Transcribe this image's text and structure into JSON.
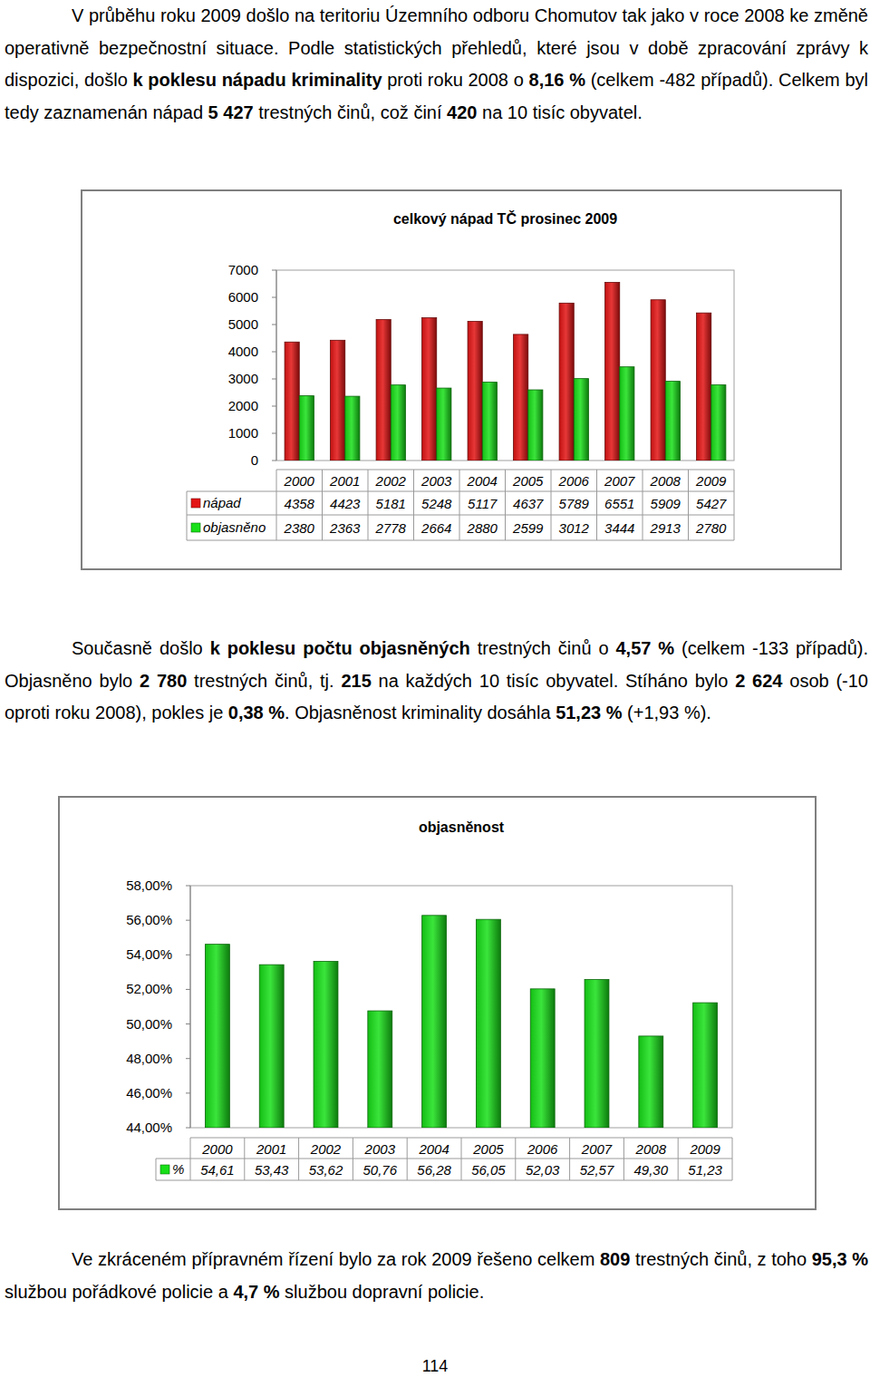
{
  "document": {
    "paragraphs": [
      {
        "runs": [
          {
            "text": "V průběhu roku 2009 došlo na teritoriu Územního odboru Chomutov tak jako v roce 2008 ke změně operativně bezpečnostní situace. Podle statistických přehledů, které jsou v době zpracování zprávy k dispozici, došlo ",
            "bold": false
          },
          {
            "text": "k poklesu nápadu kriminality",
            "bold": true
          },
          {
            "text": " proti roku 2008 o ",
            "bold": false
          },
          {
            "text": "8,16 %",
            "bold": true
          },
          {
            "text": " (celkem -482 případů). Celkem byl tedy zaznamenán nápad ",
            "bold": false
          },
          {
            "text": "5 427",
            "bold": true
          },
          {
            "text": " trestných činů, což činí ",
            "bold": false
          },
          {
            "text": "420",
            "bold": true
          },
          {
            "text": " na 10 tisíc obyvatel.",
            "bold": false
          }
        ]
      },
      {
        "runs": [
          {
            "text": "Současně došlo ",
            "bold": false
          },
          {
            "text": "k poklesu počtu objasněných",
            "bold": true
          },
          {
            "text": " trestných činů o ",
            "bold": false
          },
          {
            "text": "4,57 %",
            "bold": true
          },
          {
            "text": " (celkem -133 případů). Objasněno bylo ",
            "bold": false
          },
          {
            "text": "2 780",
            "bold": true
          },
          {
            "text": " trestných činů, tj. ",
            "bold": false
          },
          {
            "text": "215",
            "bold": true
          },
          {
            "text": " na každých 10 tisíc obyvatel. Stíháno bylo ",
            "bold": false
          },
          {
            "text": "2 624",
            "bold": true
          },
          {
            "text": " osob (-10 oproti roku 2008), pokles je ",
            "bold": false
          },
          {
            "text": "0,38 %",
            "bold": true
          },
          {
            "text": ". Objasněnost kriminality dosáhla ",
            "bold": false
          },
          {
            "text": "51,23 %",
            "bold": true
          },
          {
            "text": " (+1,93 %).",
            "bold": false
          }
        ]
      },
      {
        "runs": [
          {
            "text": "Ve zkráceném přípravném řízení bylo za rok 2009 řešeno celkem ",
            "bold": false
          },
          {
            "text": "809",
            "bold": true
          },
          {
            "text": " trestných činů, z toho ",
            "bold": false
          },
          {
            "text": "95,3 %",
            "bold": true
          },
          {
            "text": " službou pořádkové policie a ",
            "bold": false
          },
          {
            "text": "4,7 %",
            "bold": true
          },
          {
            "text": " službou dopravní policie.",
            "bold": false
          }
        ]
      }
    ],
    "page_number": "114"
  },
  "chart_data": [
    {
      "type": "bar",
      "title": "celkový nápad TČ prosinec 2009",
      "categories": [
        "2000",
        "2001",
        "2002",
        "2003",
        "2004",
        "2005",
        "2006",
        "2007",
        "2008",
        "2009"
      ],
      "series": [
        {
          "name": "nápad",
          "color": "#e41414",
          "values": [
            4358,
            4423,
            5181,
            5248,
            5117,
            4637,
            5789,
            6551,
            5909,
            5427
          ]
        },
        {
          "name": "objasněno",
          "color": "#18e018",
          "values": [
            2380,
            2363,
            2778,
            2664,
            2880,
            2599,
            3012,
            3444,
            2913,
            2780
          ]
        }
      ],
      "ylim": [
        0,
        7000
      ],
      "yticks": [
        0,
        1000,
        2000,
        3000,
        4000,
        5000,
        6000,
        7000
      ],
      "grid": false,
      "legend": "bottom"
    },
    {
      "type": "bar",
      "title": "objasněnost",
      "categories": [
        "2000",
        "2001",
        "2002",
        "2003",
        "2004",
        "2005",
        "2006",
        "2007",
        "2008",
        "2009"
      ],
      "series": [
        {
          "name": "%",
          "color": "#18e018",
          "values": [
            54.61,
            53.43,
            53.62,
            50.76,
            56.28,
            56.05,
            52.03,
            52.57,
            49.3,
            51.23
          ],
          "value_labels": [
            "54,61",
            "53,43",
            "53,62",
            "50,76",
            "56,28",
            "56,05",
            "52,03",
            "52,57",
            "49,30",
            "51,23"
          ]
        }
      ],
      "ylim": [
        44,
        58
      ],
      "yticks": [
        {
          "value": 44,
          "label": "44,00%"
        },
        {
          "value": 46,
          "label": "46,00%"
        },
        {
          "value": 48,
          "label": "48,00%"
        },
        {
          "value": 50,
          "label": "50,00%"
        },
        {
          "value": 52,
          "label": "52,00%"
        },
        {
          "value": 54,
          "label": "54,00%"
        },
        {
          "value": 56,
          "label": "56,00%"
        },
        {
          "value": 58,
          "label": "58,00%"
        }
      ],
      "grid": false,
      "legend": "bottom"
    }
  ]
}
